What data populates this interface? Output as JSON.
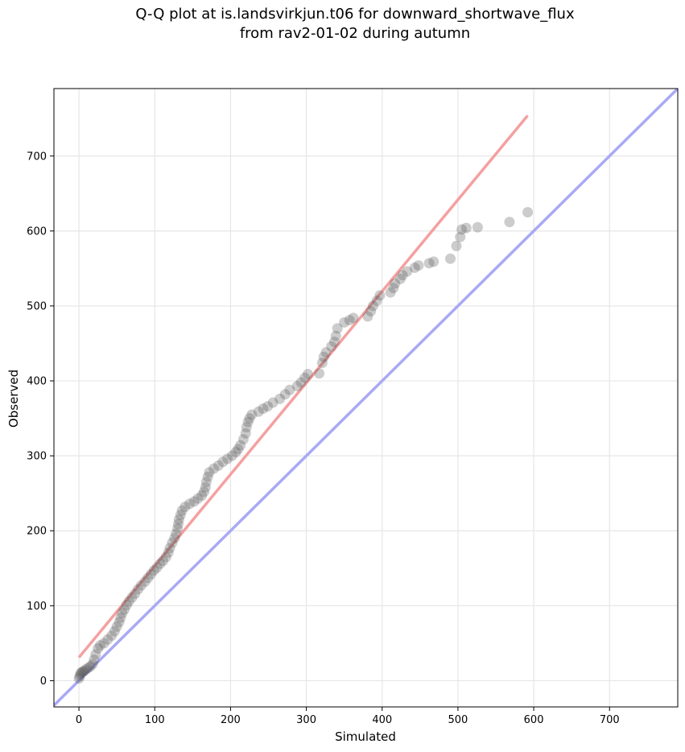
{
  "chart_data": {
    "type": "scatter",
    "title_line1": "Q-Q plot at is.landsvirkjun.t06 for downward_shortwave_flux",
    "title_line2": "from rav2-01-02 during autumn",
    "xlabel": "Simulated",
    "ylabel": "Observed",
    "xlim": [
      -33,
      790
    ],
    "ylim": [
      -35,
      790
    ],
    "xticks": [
      0,
      100,
      200,
      300,
      400,
      500,
      600,
      700
    ],
    "yticks": [
      0,
      100,
      200,
      300,
      400,
      500,
      600,
      700
    ],
    "grid": true,
    "colors": {
      "points": "#555555",
      "fit_line": "#f4a0a0",
      "identity_line": "#a9a9f5"
    },
    "identity_line": {
      "x": [
        -33,
        790
      ],
      "y": [
        -33,
        790
      ]
    },
    "fit_line": {
      "x": [
        0,
        592
      ],
      "y": [
        31,
        754
      ]
    },
    "points": [
      [
        0,
        3
      ],
      [
        1,
        6
      ],
      [
        2,
        9
      ],
      [
        3,
        11
      ],
      [
        5,
        12
      ],
      [
        7,
        13
      ],
      [
        9,
        15
      ],
      [
        12,
        17
      ],
      [
        15,
        19
      ],
      [
        18,
        22
      ],
      [
        20,
        28
      ],
      [
        22,
        35
      ],
      [
        25,
        43
      ],
      [
        28,
        47
      ],
      [
        33,
        50
      ],
      [
        38,
        55
      ],
      [
        43,
        60
      ],
      [
        47,
        66
      ],
      [
        50,
        72
      ],
      [
        53,
        78
      ],
      [
        55,
        84
      ],
      [
        57,
        90
      ],
      [
        60,
        95
      ],
      [
        63,
        101
      ],
      [
        66,
        106
      ],
      [
        70,
        111
      ],
      [
        74,
        116
      ],
      [
        78,
        122
      ],
      [
        82,
        127
      ],
      [
        87,
        132
      ],
      [
        91,
        137
      ],
      [
        95,
        142
      ],
      [
        99,
        147
      ],
      [
        103,
        151
      ],
      [
        107,
        156
      ],
      [
        111,
        160
      ],
      [
        115,
        165
      ],
      [
        118,
        171
      ],
      [
        120,
        177
      ],
      [
        123,
        184
      ],
      [
        126,
        190
      ],
      [
        128,
        196
      ],
      [
        130,
        203
      ],
      [
        131,
        209
      ],
      [
        132,
        215
      ],
      [
        134,
        221
      ],
      [
        136,
        227
      ],
      [
        140,
        232
      ],
      [
        146,
        236
      ],
      [
        152,
        239
      ],
      [
        157,
        243
      ],
      [
        162,
        247
      ],
      [
        165,
        252
      ],
      [
        167,
        258
      ],
      [
        168,
        265
      ],
      [
        170,
        272
      ],
      [
        172,
        278
      ],
      [
        178,
        283
      ],
      [
        184,
        287
      ],
      [
        190,
        292
      ],
      [
        196,
        296
      ],
      [
        202,
        300
      ],
      [
        207,
        305
      ],
      [
        210,
        309
      ],
      [
        213,
        314
      ],
      [
        217,
        322
      ],
      [
        220,
        330
      ],
      [
        221,
        338
      ],
      [
        223,
        345
      ],
      [
        225,
        350
      ],
      [
        228,
        355
      ],
      [
        237,
        359
      ],
      [
        243,
        363
      ],
      [
        249,
        366
      ],
      [
        256,
        371
      ],
      [
        265,
        376
      ],
      [
        272,
        382
      ],
      [
        278,
        388
      ],
      [
        288,
        393
      ],
      [
        293,
        398
      ],
      [
        298,
        404
      ],
      [
        302,
        409
      ],
      [
        317,
        410
      ],
      [
        321,
        424
      ],
      [
        323,
        432
      ],
      [
        326,
        438
      ],
      [
        333,
        446
      ],
      [
        337,
        452
      ],
      [
        339,
        460
      ],
      [
        341,
        470
      ],
      [
        350,
        478
      ],
      [
        357,
        481
      ],
      [
        362,
        484
      ],
      [
        381,
        486
      ],
      [
        385,
        493
      ],
      [
        388,
        500
      ],
      [
        393,
        507
      ],
      [
        397,
        514
      ],
      [
        411,
        518
      ],
      [
        415,
        524
      ],
      [
        417,
        530
      ],
      [
        424,
        536
      ],
      [
        427,
        541
      ],
      [
        433,
        546
      ],
      [
        443,
        551
      ],
      [
        448,
        554
      ],
      [
        462,
        557
      ],
      [
        468,
        559
      ],
      [
        490,
        563
      ],
      [
        498,
        580
      ],
      [
        503,
        592
      ],
      [
        505,
        602
      ],
      [
        511,
        604
      ],
      [
        526,
        605
      ],
      [
        568,
        612
      ],
      [
        592,
        625
      ]
    ]
  }
}
